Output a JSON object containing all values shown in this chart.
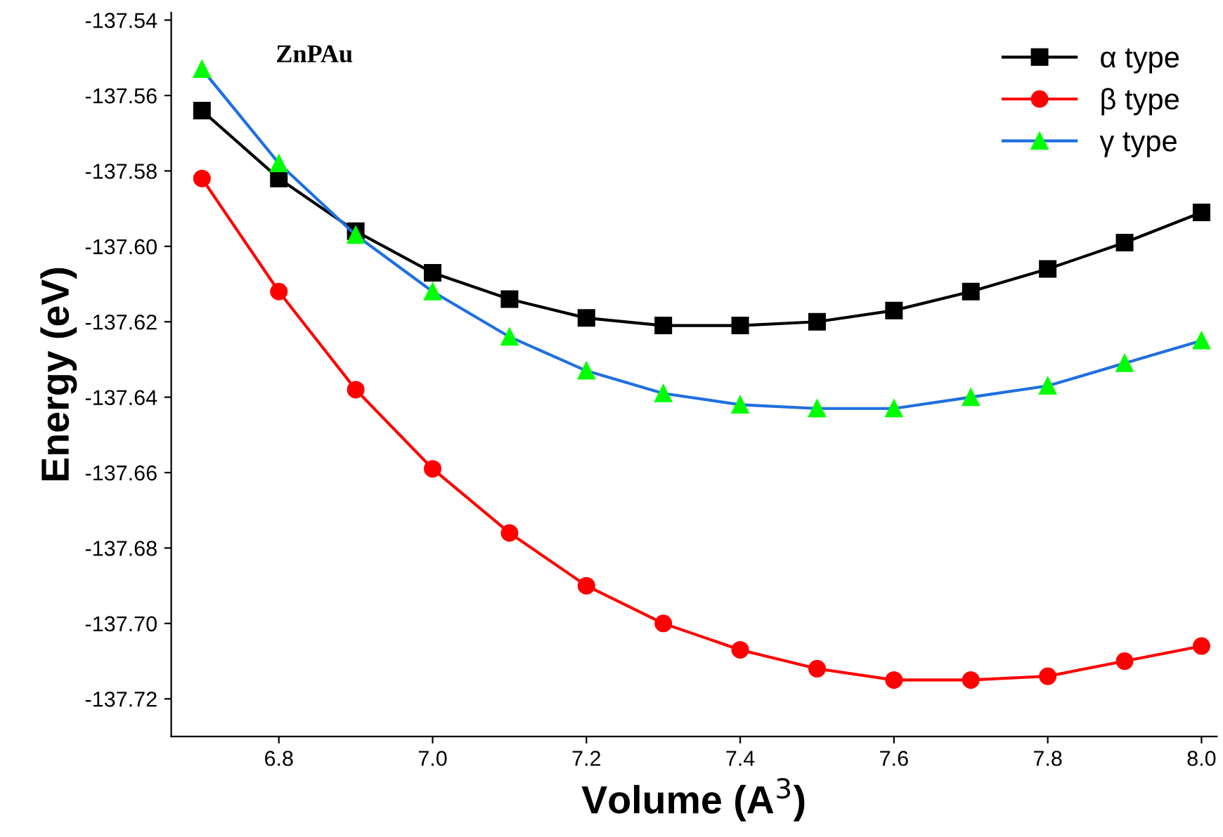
{
  "chart_data": {
    "type": "line",
    "title": "ZnPAu",
    "xlabel": "Volume (A$^{3}$)",
    "ylabel": "Energy (eV)",
    "x": [
      6.7,
      6.8,
      6.9,
      7.0,
      7.1,
      7.2,
      7.3,
      7.4,
      7.5,
      7.6,
      7.7,
      7.8,
      7.9,
      8.0
    ],
    "series": [
      {
        "name": "α type",
        "color": "#000000",
        "marker": "square",
        "values": [
          -137.564,
          -137.582,
          -137.596,
          -137.607,
          -137.614,
          -137.619,
          -137.621,
          -137.621,
          -137.62,
          -137.617,
          -137.612,
          -137.606,
          -137.599,
          -137.591
        ]
      },
      {
        "name": "β type",
        "color": "#ff0000",
        "marker": "circle",
        "values": [
          -137.582,
          -137.612,
          -137.638,
          -137.659,
          -137.676,
          -137.69,
          -137.7,
          -137.707,
          -137.712,
          -137.715,
          -137.715,
          -137.714,
          -137.71,
          -137.706
        ]
      },
      {
        "name": "γ type",
        "color": "#1f6fe0",
        "colors": [
          "#00ff00",
          "#00ff00",
          "#00ff00",
          "#00ff00",
          "#00ff00",
          "#00ff00",
          "#00ff00",
          "#00ff00",
          "#00ff00",
          "#00ff00",
          "#00ff00",
          "#00ff00",
          "#00ff00",
          "#00ff00"
        ],
        "marker": "triangle",
        "values": [
          -137.553,
          -137.578,
          -137.597,
          -137.612,
          -137.624,
          -137.633,
          -137.639,
          -137.642,
          -137.643,
          -137.643,
          -137.64,
          -137.637,
          -137.631,
          -137.625
        ]
      }
    ],
    "xlim": [
      6.66,
      8.02
    ],
    "xticks": [
      {
        "value": 6.8,
        "label": "6.8"
      },
      {
        "value": 7.0,
        "label": "7.0"
      },
      {
        "value": 7.2,
        "label": "7.2"
      },
      {
        "value": 7.4,
        "label": "7.4"
      },
      {
        "value": 7.6,
        "label": "7.6"
      },
      {
        "value": 7.8,
        "label": "7.8"
      },
      {
        "value": 8.0,
        "label": "8.0"
      }
    ],
    "ylim": [
      -137.73,
      -137.538
    ],
    "yticks": [
      {
        "value": -137.72,
        "label": "-137.72"
      },
      {
        "value": -137.7,
        "label": "-137.70"
      },
      {
        "value": -137.68,
        "label": "-137.68"
      },
      {
        "value": -137.66,
        "label": "-137.66"
      },
      {
        "value": -137.64,
        "label": "-137.64"
      },
      {
        "value": -137.62,
        "label": "-137.62"
      },
      {
        "value": -137.6,
        "label": "-137.60"
      },
      {
        "value": -137.58,
        "label": "-137.58"
      },
      {
        "value": -137.56,
        "label": "-137.56"
      },
      {
        "value": -137.54,
        "label": "-137.54"
      }
    ],
    "legend": "top right",
    "grid": false
  }
}
